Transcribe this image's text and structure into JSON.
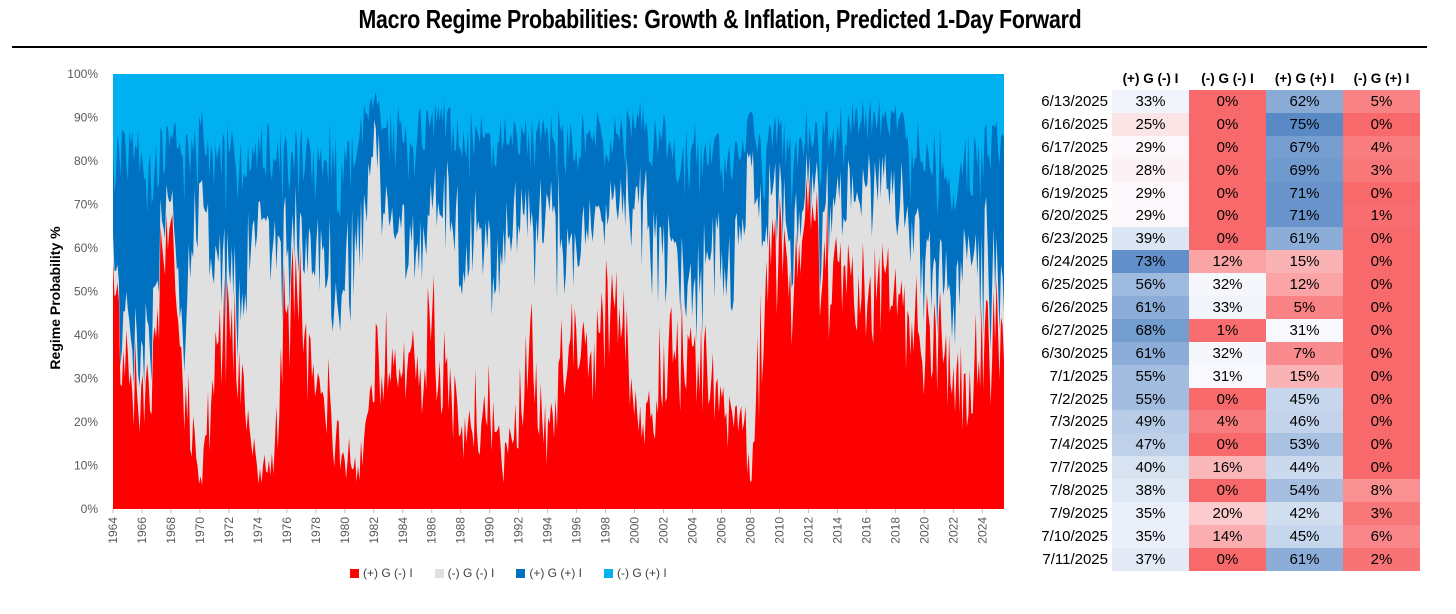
{
  "title": "Macro Regime Probabilities: Growth & Inflation, Predicted 1-Day Forward",
  "colors": {
    "pos_g_neg_i": "#ff0000",
    "neg_g_neg_i": "#e0e0e0",
    "pos_g_pos_i": "#0070c0",
    "neg_g_pos_i": "#00b0f0"
  },
  "chart_data": {
    "type": "area",
    "stacked": true,
    "title": "Macro Regime Probabilities: Growth & Inflation, Predicted 1-Day Forward",
    "xlabel": "",
    "ylabel": "Regime Probability %",
    "ylim": [
      0,
      100
    ],
    "x_ticks": [
      "1964",
      "1966",
      "1968",
      "1970",
      "1972",
      "1974",
      "1976",
      "1978",
      "1980",
      "1982",
      "1984",
      "1986",
      "1988",
      "1990",
      "1992",
      "1994",
      "1996",
      "1998",
      "2000",
      "2002",
      "2004",
      "2006",
      "2008",
      "2010",
      "2012",
      "2014",
      "2016",
      "2018",
      "2020",
      "2022",
      "2024"
    ],
    "y_ticks": [
      "0%",
      "10%",
      "20%",
      "30%",
      "40%",
      "50%",
      "60%",
      "70%",
      "80%",
      "90%",
      "100%"
    ],
    "x_range": [
      1964,
      2025.5
    ],
    "series_note": "approximate smoothed values per year read off the chart (percent, stacked bottom to top)",
    "x": [
      1964,
      1965,
      1966,
      1967,
      1968,
      1969,
      1970,
      1971,
      1972,
      1973,
      1974,
      1975,
      1976,
      1977,
      1978,
      1979,
      1980,
      1981,
      1982,
      1983,
      1984,
      1985,
      1986,
      1987,
      1988,
      1989,
      1990,
      1991,
      1992,
      1993,
      1994,
      1995,
      1996,
      1997,
      1998,
      1999,
      2000,
      2001,
      2002,
      2003,
      2004,
      2005,
      2006,
      2007,
      2008,
      2009,
      2010,
      2011,
      2012,
      2013,
      2014,
      2015,
      2016,
      2017,
      2018,
      2019,
      2020,
      2021,
      2022,
      2023,
      2024,
      2025
    ],
    "series": [
      {
        "name": "(+) G (-) I",
        "values": [
          50,
          35,
          25,
          40,
          70,
          25,
          5,
          30,
          45,
          30,
          8,
          10,
          50,
          45,
          30,
          20,
          10,
          10,
          25,
          35,
          30,
          35,
          40,
          30,
          15,
          20,
          20,
          10,
          25,
          35,
          15,
          30,
          40,
          30,
          50,
          40,
          20,
          20,
          30,
          35,
          40,
          30,
          25,
          25,
          10,
          50,
          60,
          50,
          70,
          60,
          55,
          60,
          50,
          55,
          50,
          45,
          35,
          40,
          30,
          30,
          35,
          45
        ]
      },
      {
        "name": "(-) G (-) I",
        "values": [
          5,
          10,
          10,
          10,
          5,
          15,
          70,
          20,
          10,
          20,
          60,
          50,
          10,
          15,
          30,
          30,
          40,
          50,
          60,
          30,
          30,
          25,
          30,
          40,
          45,
          45,
          40,
          50,
          40,
          30,
          55,
          30,
          20,
          35,
          20,
          30,
          50,
          45,
          30,
          20,
          10,
          25,
          35,
          30,
          70,
          15,
          10,
          10,
          5,
          10,
          15,
          15,
          25,
          20,
          20,
          25,
          20,
          15,
          20,
          30,
          20,
          10
        ]
      },
      {
        "name": "(+) G (+) I",
        "values": [
          25,
          40,
          45,
          25,
          15,
          40,
          10,
          30,
          25,
          30,
          15,
          20,
          20,
          20,
          20,
          30,
          25,
          25,
          10,
          20,
          25,
          25,
          20,
          20,
          25,
          20,
          25,
          25,
          20,
          20,
          15,
          25,
          25,
          20,
          15,
          15,
          20,
          20,
          25,
          25,
          30,
          25,
          20,
          25,
          10,
          15,
          15,
          20,
          10,
          15,
          15,
          15,
          15,
          15,
          20,
          15,
          25,
          25,
          25,
          20,
          25,
          30
        ]
      },
      {
        "name": "(-) G (+) I",
        "values": [
          20,
          15,
          20,
          25,
          10,
          20,
          15,
          20,
          20,
          20,
          17,
          20,
          20,
          20,
          20,
          20,
          25,
          15,
          5,
          15,
          15,
          15,
          10,
          10,
          15,
          15,
          15,
          15,
          15,
          15,
          15,
          15,
          15,
          15,
          15,
          15,
          10,
          15,
          15,
          20,
          20,
          20,
          20,
          20,
          10,
          20,
          15,
          20,
          15,
          15,
          15,
          10,
          10,
          10,
          10,
          15,
          20,
          20,
          25,
          20,
          20,
          15
        ]
      }
    ],
    "legend": [
      "(+) G (-) I",
      "(-) G (-) I",
      "(+) G (+) I",
      "(-) G (+) I"
    ],
    "legend_position": "bottom"
  },
  "table": {
    "headers": [
      "(+) G (-) I",
      "(-) G (-) I",
      "(+) G (+) I",
      "(-) G (+) I"
    ],
    "rows": [
      {
        "date": "6/13/2025",
        "values": [
          33,
          0,
          62,
          5
        ]
      },
      {
        "date": "6/16/2025",
        "values": [
          25,
          0,
          75,
          0
        ]
      },
      {
        "date": "6/17/2025",
        "values": [
          29,
          0,
          67,
          4
        ]
      },
      {
        "date": "6/18/2025",
        "values": [
          28,
          0,
          69,
          3
        ]
      },
      {
        "date": "6/19/2025",
        "values": [
          29,
          0,
          71,
          0
        ]
      },
      {
        "date": "6/20/2025",
        "values": [
          29,
          0,
          71,
          1
        ]
      },
      {
        "date": "6/23/2025",
        "values": [
          39,
          0,
          61,
          0
        ]
      },
      {
        "date": "6/24/2025",
        "values": [
          73,
          12,
          15,
          0
        ]
      },
      {
        "date": "6/25/2025",
        "values": [
          56,
          32,
          12,
          0
        ]
      },
      {
        "date": "6/26/2025",
        "values": [
          61,
          33,
          5,
          0
        ]
      },
      {
        "date": "6/27/2025",
        "values": [
          68,
          1,
          31,
          0
        ]
      },
      {
        "date": "6/30/2025",
        "values": [
          61,
          32,
          7,
          0
        ]
      },
      {
        "date": "7/1/2025",
        "values": [
          55,
          31,
          15,
          0
        ]
      },
      {
        "date": "7/2/2025",
        "values": [
          55,
          0,
          45,
          0
        ]
      },
      {
        "date": "7/3/2025",
        "values": [
          49,
          4,
          46,
          0
        ]
      },
      {
        "date": "7/4/2025",
        "values": [
          47,
          0,
          53,
          0
        ]
      },
      {
        "date": "7/7/2025",
        "values": [
          40,
          16,
          44,
          0
        ]
      },
      {
        "date": "7/8/2025",
        "values": [
          38,
          0,
          54,
          8
        ]
      },
      {
        "date": "7/9/2025",
        "values": [
          35,
          20,
          42,
          3
        ]
      },
      {
        "date": "7/10/2025",
        "values": [
          35,
          14,
          45,
          6
        ]
      },
      {
        "date": "7/11/2025",
        "values": [
          37,
          0,
          61,
          2
        ]
      }
    ]
  }
}
